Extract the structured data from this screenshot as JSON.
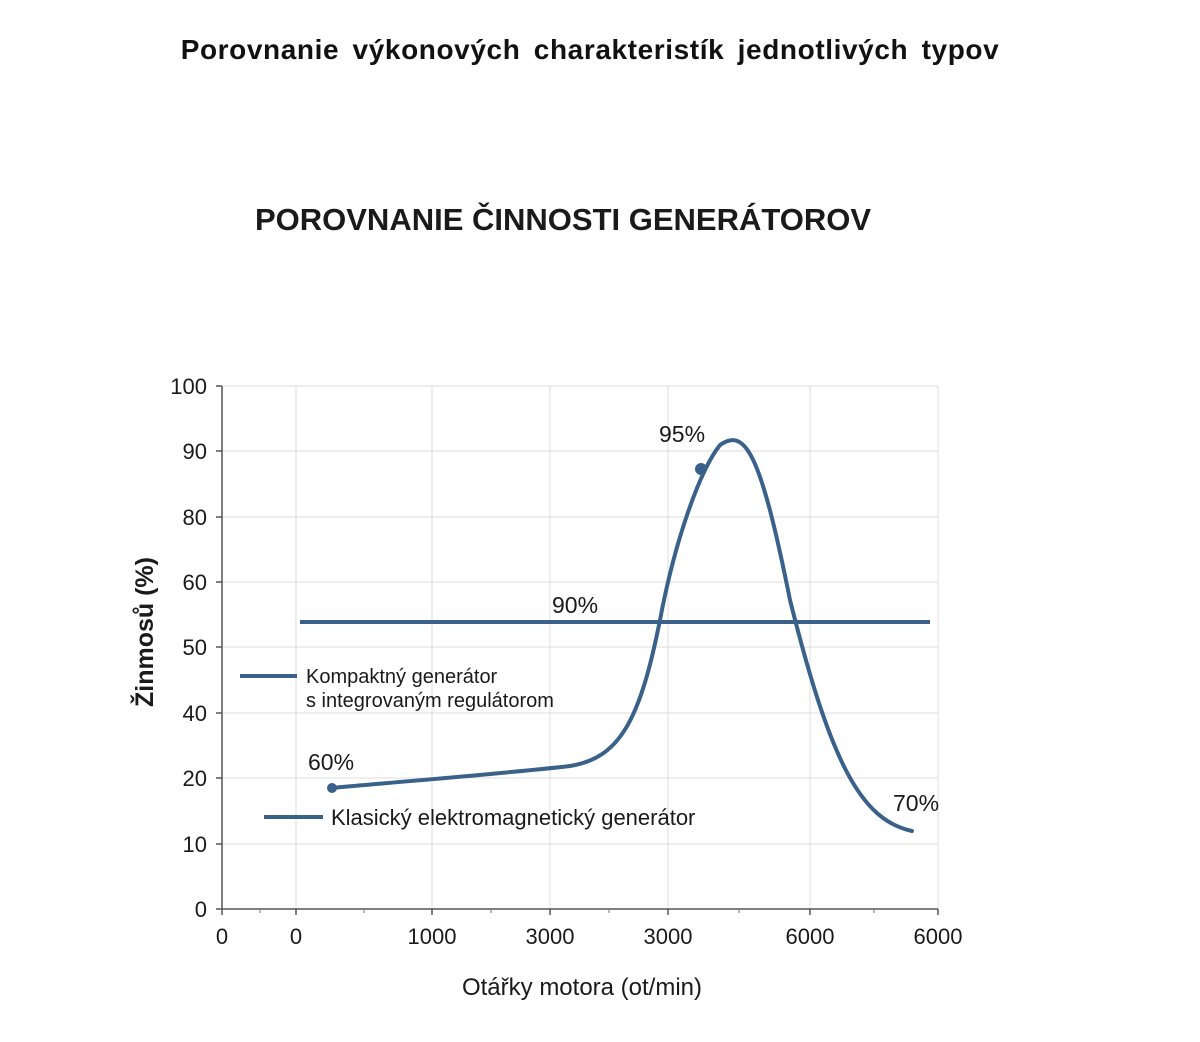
{
  "page": {
    "heading": "Porovnanie výkonových charakteristík jednotlivých typov"
  },
  "chart_data": {
    "type": "line",
    "title": "POROVNANIE ČINNOSTI GENERÁTOROV",
    "xlabel": "Otářky motora (ot/min)",
    "ylabel": "Žinmosů (%)",
    "x_tick_labels": [
      "0",
      "0",
      "1000",
      "3000",
      "3000",
      "6000",
      "6000"
    ],
    "y_tick_labels": [
      "0",
      "10",
      "20",
      "40",
      "50",
      "60",
      "80",
      "90",
      "100"
    ],
    "grid": true,
    "line_color": "#3a6189",
    "series": [
      {
        "name": "Kompaktný generátor s integrovaným regulátorom",
        "legend_lines": [
          "Kompaktný generátor",
          "s integrovaným regulátorom"
        ],
        "note": "flat line",
        "values_y": [
          54,
          54
        ]
      },
      {
        "name": "Klasický elektromagnetický generátor",
        "legend_lines": [
          "Klasický elektromagnetický generátor"
        ],
        "note": "curve with peak"
      }
    ],
    "annotations": [
      "60%",
      "95%",
      "90%",
      "70%"
    ]
  }
}
